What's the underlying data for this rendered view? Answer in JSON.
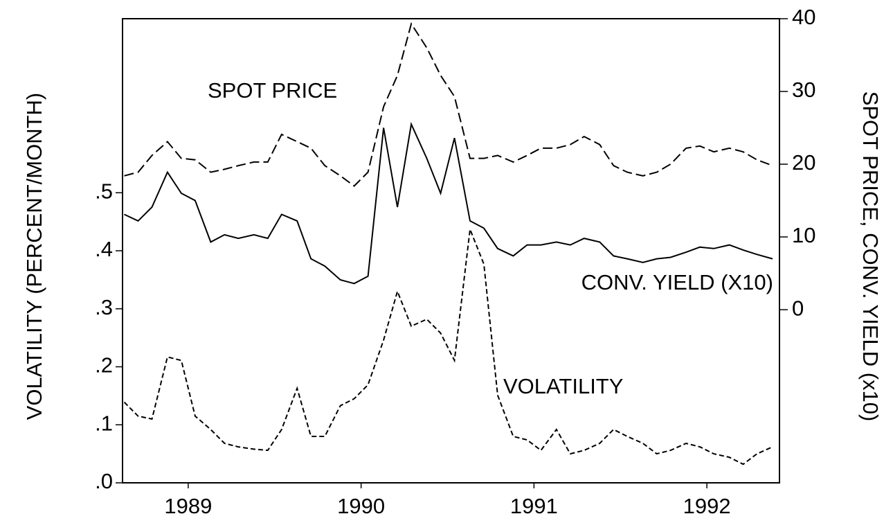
{
  "chart_data": {
    "type": "line",
    "y_label": "VOLATILITY (PERCENT/MONTH)",
    "y2_label": "SPOT PRICE, CONV. YIELD (x10)",
    "x": [
      1988.63,
      1988.71,
      1988.79,
      1988.88,
      1988.96,
      1989.04,
      1989.13,
      1989.21,
      1989.29,
      1989.38,
      1989.46,
      1989.54,
      1989.63,
      1989.71,
      1989.79,
      1989.88,
      1989.96,
      1990.04,
      1990.13,
      1990.21,
      1990.29,
      1990.38,
      1990.46,
      1990.54,
      1990.63,
      1990.71,
      1990.79,
      1990.88,
      1990.96,
      1991.04,
      1991.13,
      1991.21,
      1991.29,
      1991.38,
      1991.46,
      1991.54,
      1991.63,
      1991.71,
      1991.79,
      1991.88,
      1991.96,
      1992.04,
      1992.13,
      1992.21,
      1992.29,
      1992.38
    ],
    "xlim": [
      1988.62,
      1992.42
    ],
    "xticks": [
      1989,
      1990,
      1991,
      1992
    ],
    "ylim": [
      0,
      0.8
    ],
    "yticks": [
      {
        "value": 0,
        "label": ".0"
      },
      {
        "value": 0.1,
        "label": ".1"
      },
      {
        "value": 0.2,
        "label": ".2"
      },
      {
        "value": 0.3,
        "label": ".3"
      },
      {
        "value": 0.4,
        "label": ".4"
      },
      {
        "value": 0.5,
        "label": ".5"
      }
    ],
    "y2lim": [
      -23.8,
      40
    ],
    "y2ticks": [
      0,
      10,
      20,
      30,
      40
    ],
    "series": [
      {
        "name": "SPOT PRICE",
        "color": "#000000",
        "axis": "y2",
        "dash": "14 6",
        "values": [
          18.4,
          18.9,
          21.2,
          23.1,
          20.8,
          20.6,
          18.9,
          19.3,
          19.8,
          20.3,
          20.3,
          24.1,
          23.1,
          22.2,
          19.8,
          18.4,
          17.0,
          18.9,
          27.9,
          32.2,
          39.3,
          36.0,
          32.2,
          29.3,
          20.8,
          20.8,
          21.2,
          20.3,
          21.2,
          22.2,
          22.2,
          22.7,
          23.8,
          22.7,
          19.8,
          18.9,
          18.4,
          18.9,
          20.0,
          22.2,
          22.5,
          21.7,
          22.2,
          21.7,
          20.6,
          19.8
        ]
      },
      {
        "name": "CONV. YIELD (X10)",
        "color": "#000000",
        "axis": "y2",
        "dash": "none",
        "values": [
          13.1,
          12.2,
          14.1,
          18.9,
          16.0,
          15.0,
          9.3,
          10.3,
          9.8,
          10.3,
          9.8,
          13.1,
          12.2,
          7.0,
          6.0,
          4.1,
          3.6,
          4.6,
          25.0,
          14.1,
          25.5,
          20.8,
          16.0,
          23.6,
          12.2,
          11.2,
          8.4,
          7.4,
          8.9,
          8.9,
          9.3,
          8.9,
          9.8,
          9.3,
          7.4,
          7.0,
          6.5,
          7.0,
          7.2,
          7.9,
          8.6,
          8.4,
          8.9,
          8.2,
          7.6,
          7.0
        ]
      },
      {
        "name": "VOLATILITY",
        "color": "#000000",
        "axis": "y",
        "dash": "7 4",
        "values": [
          0.139,
          0.115,
          0.11,
          0.217,
          0.211,
          0.115,
          0.092,
          0.068,
          0.062,
          0.058,
          0.056,
          0.092,
          0.163,
          0.08,
          0.08,
          0.133,
          0.145,
          0.169,
          0.246,
          0.33,
          0.27,
          0.282,
          0.258,
          0.211,
          0.437,
          0.377,
          0.151,
          0.08,
          0.074,
          0.056,
          0.092,
          0.05,
          0.056,
          0.068,
          0.092,
          0.08,
          0.068,
          0.05,
          0.056,
          0.068,
          0.062,
          0.05,
          0.044,
          0.032,
          0.05,
          0.062
        ]
      }
    ]
  }
}
